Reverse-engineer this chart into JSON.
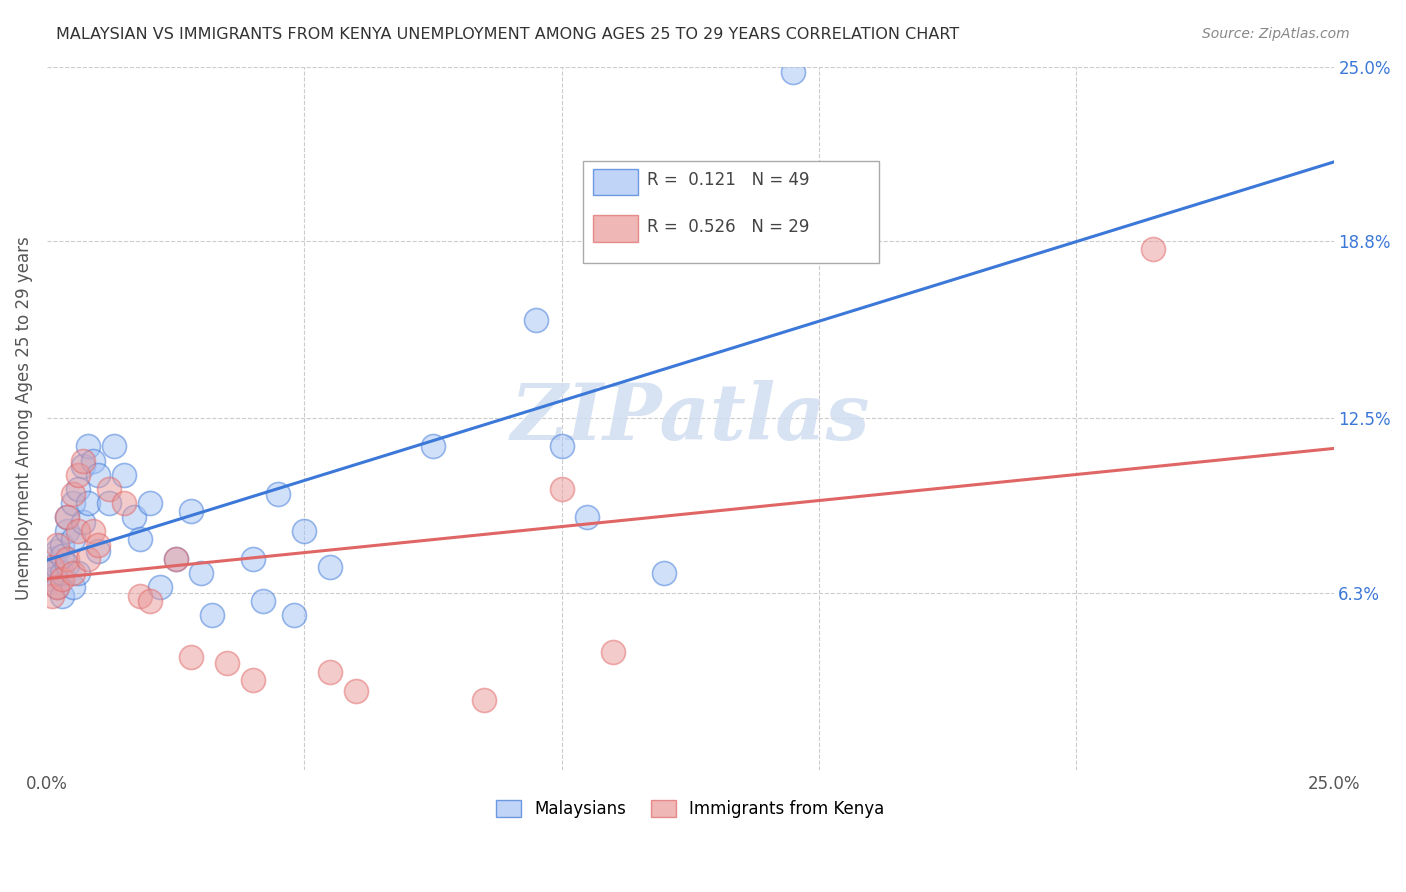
{
  "title": "MALAYSIAN VS IMMIGRANTS FROM KENYA UNEMPLOYMENT AMONG AGES 25 TO 29 YEARS CORRELATION CHART",
  "source": "Source: ZipAtlas.com",
  "ylabel": "Unemployment Among Ages 25 to 29 years",
  "xlim": [
    0,
    0.25
  ],
  "ylim": [
    0,
    0.25
  ],
  "watermark": "ZIPatlas",
  "blue_color": "#a4c2f4",
  "pink_color": "#ea9999",
  "blue_line_color": "#3c78d8",
  "pink_line_color": "#e06666",
  "ytick_right_vals": [
    0.063,
    0.125,
    0.188,
    0.25
  ],
  "ytick_right_labels": [
    "6.3%",
    "12.5%",
    "18.8%",
    "25.0%"
  ],
  "malaysian_x": [
    0.001,
    0.001,
    0.001,
    0.002,
    0.002,
    0.002,
    0.003,
    0.003,
    0.003,
    0.003,
    0.004,
    0.004,
    0.004,
    0.005,
    0.005,
    0.005,
    0.006,
    0.006,
    0.007,
    0.007,
    0.008,
    0.008,
    0.009,
    0.01,
    0.01,
    0.012,
    0.013,
    0.015,
    0.017,
    0.018,
    0.02,
    0.022,
    0.025,
    0.028,
    0.03,
    0.032,
    0.04,
    0.042,
    0.045,
    0.048,
    0.05,
    0.055,
    0.075,
    0.1,
    0.105,
    0.12,
    0.145,
    0.155,
    0.095
  ],
  "malaysian_y": [
    0.07,
    0.075,
    0.068,
    0.072,
    0.078,
    0.065,
    0.08,
    0.07,
    0.062,
    0.076,
    0.085,
    0.073,
    0.09,
    0.082,
    0.095,
    0.065,
    0.1,
    0.07,
    0.108,
    0.088,
    0.115,
    0.095,
    0.11,
    0.105,
    0.078,
    0.095,
    0.115,
    0.105,
    0.09,
    0.082,
    0.095,
    0.065,
    0.075,
    0.092,
    0.07,
    0.055,
    0.075,
    0.06,
    0.098,
    0.055,
    0.085,
    0.072,
    0.115,
    0.115,
    0.09,
    0.07,
    0.248,
    0.205,
    0.16
  ],
  "kenya_x": [
    0.001,
    0.001,
    0.002,
    0.002,
    0.003,
    0.004,
    0.004,
    0.005,
    0.005,
    0.006,
    0.006,
    0.007,
    0.008,
    0.009,
    0.01,
    0.012,
    0.015,
    0.018,
    0.02,
    0.025,
    0.028,
    0.035,
    0.04,
    0.055,
    0.06,
    0.085,
    0.1,
    0.11,
    0.215
  ],
  "kenya_y": [
    0.062,
    0.072,
    0.065,
    0.08,
    0.068,
    0.09,
    0.075,
    0.098,
    0.07,
    0.105,
    0.085,
    0.11,
    0.075,
    0.085,
    0.08,
    0.1,
    0.095,
    0.062,
    0.06,
    0.075,
    0.04,
    0.038,
    0.032,
    0.035,
    0.028,
    0.025,
    0.1,
    0.042,
    0.185
  ]
}
